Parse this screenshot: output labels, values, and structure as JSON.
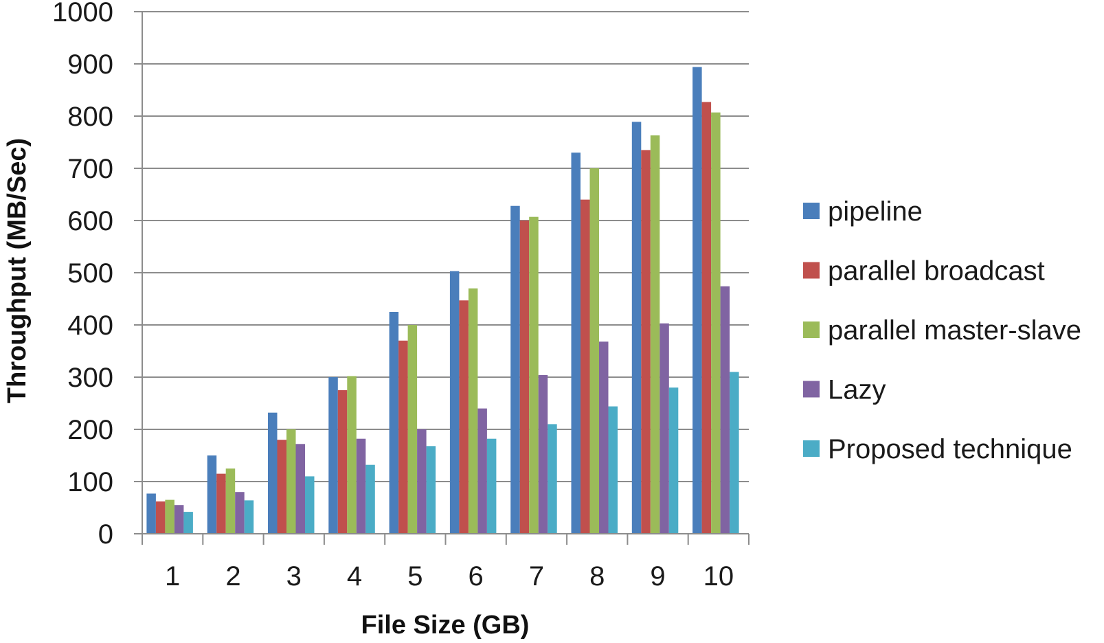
{
  "chart_data": {
    "type": "bar",
    "title": "",
    "xlabel": "File Size (GB)",
    "ylabel": "Throughput  (MB/Sec)",
    "ylim": [
      0,
      1000
    ],
    "yticks": [
      0,
      100,
      200,
      300,
      400,
      500,
      600,
      700,
      800,
      900,
      1000
    ],
    "grid": true,
    "legend_position": "right",
    "categories": [
      "1",
      "2",
      "3",
      "4",
      "5",
      "6",
      "7",
      "8",
      "9",
      "10"
    ],
    "series": [
      {
        "name": "pipeline",
        "color": "#4a7ebb",
        "values": [
          77,
          150,
          232,
          300,
          425,
          503,
          628,
          730,
          789,
          894
        ]
      },
      {
        "name": "parallel broadcast",
        "color": "#c0504d",
        "values": [
          62,
          115,
          180,
          275,
          370,
          447,
          600,
          640,
          735,
          827
        ]
      },
      {
        "name": "parallel master-slave",
        "color": "#9bbb59",
        "values": [
          65,
          125,
          200,
          302,
          400,
          470,
          607,
          700,
          763,
          807
        ]
      },
      {
        "name": "Lazy",
        "color": "#8064a2",
        "values": [
          55,
          80,
          172,
          182,
          200,
          240,
          304,
          368,
          403,
          474
        ]
      },
      {
        "name": "Proposed technique",
        "color": "#4bacc6",
        "values": [
          42,
          64,
          110,
          132,
          168,
          182,
          210,
          244,
          280,
          310
        ]
      }
    ]
  }
}
